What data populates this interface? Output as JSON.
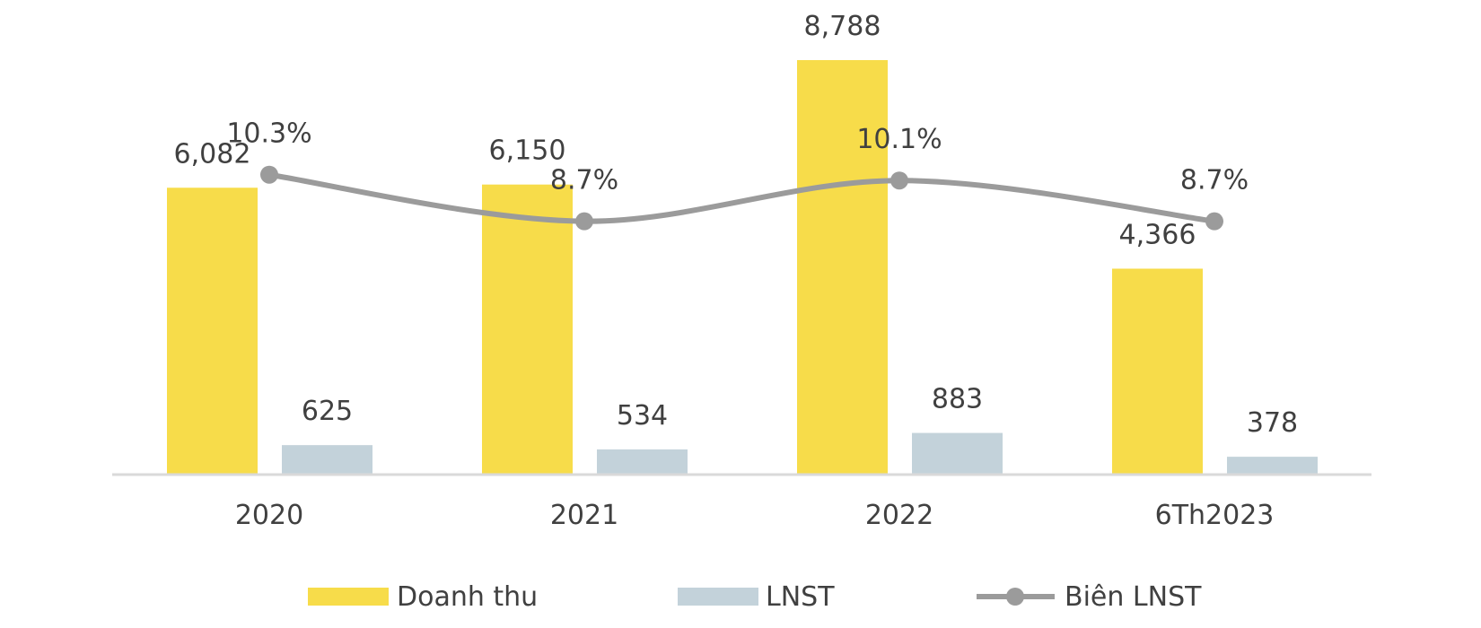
{
  "chart_data": {
    "type": "bar",
    "categories": [
      "2020",
      "2021",
      "2022",
      "6Th2023"
    ],
    "series": [
      {
        "name": "Doanh thu",
        "kind": "bar",
        "values": [
          6082,
          6150,
          8788,
          4366
        ],
        "labels": [
          "6,082",
          "6,150",
          "8,788",
          "4,366"
        ],
        "color": "#F7DC4A"
      },
      {
        "name": "LNST",
        "kind": "bar",
        "values": [
          625,
          534,
          883,
          378
        ],
        "labels": [
          "625",
          "534",
          "883",
          "378"
        ],
        "color": "#C3D2DA"
      },
      {
        "name": "Biên LNST",
        "kind": "line",
        "values": [
          10.3,
          8.7,
          10.1,
          8.7
        ],
        "labels": [
          "10.3%",
          "8.7%",
          "10.1%",
          "8.7%"
        ],
        "color": "#9B9B9B"
      }
    ],
    "bar_axis": {
      "min": 0,
      "max": 8788
    },
    "line_axis": {
      "min": 0,
      "max": 16.3
    },
    "axis_color": "#D9D9D9",
    "legend_position": "bottom",
    "grid": false,
    "label_color": "#404040"
  }
}
